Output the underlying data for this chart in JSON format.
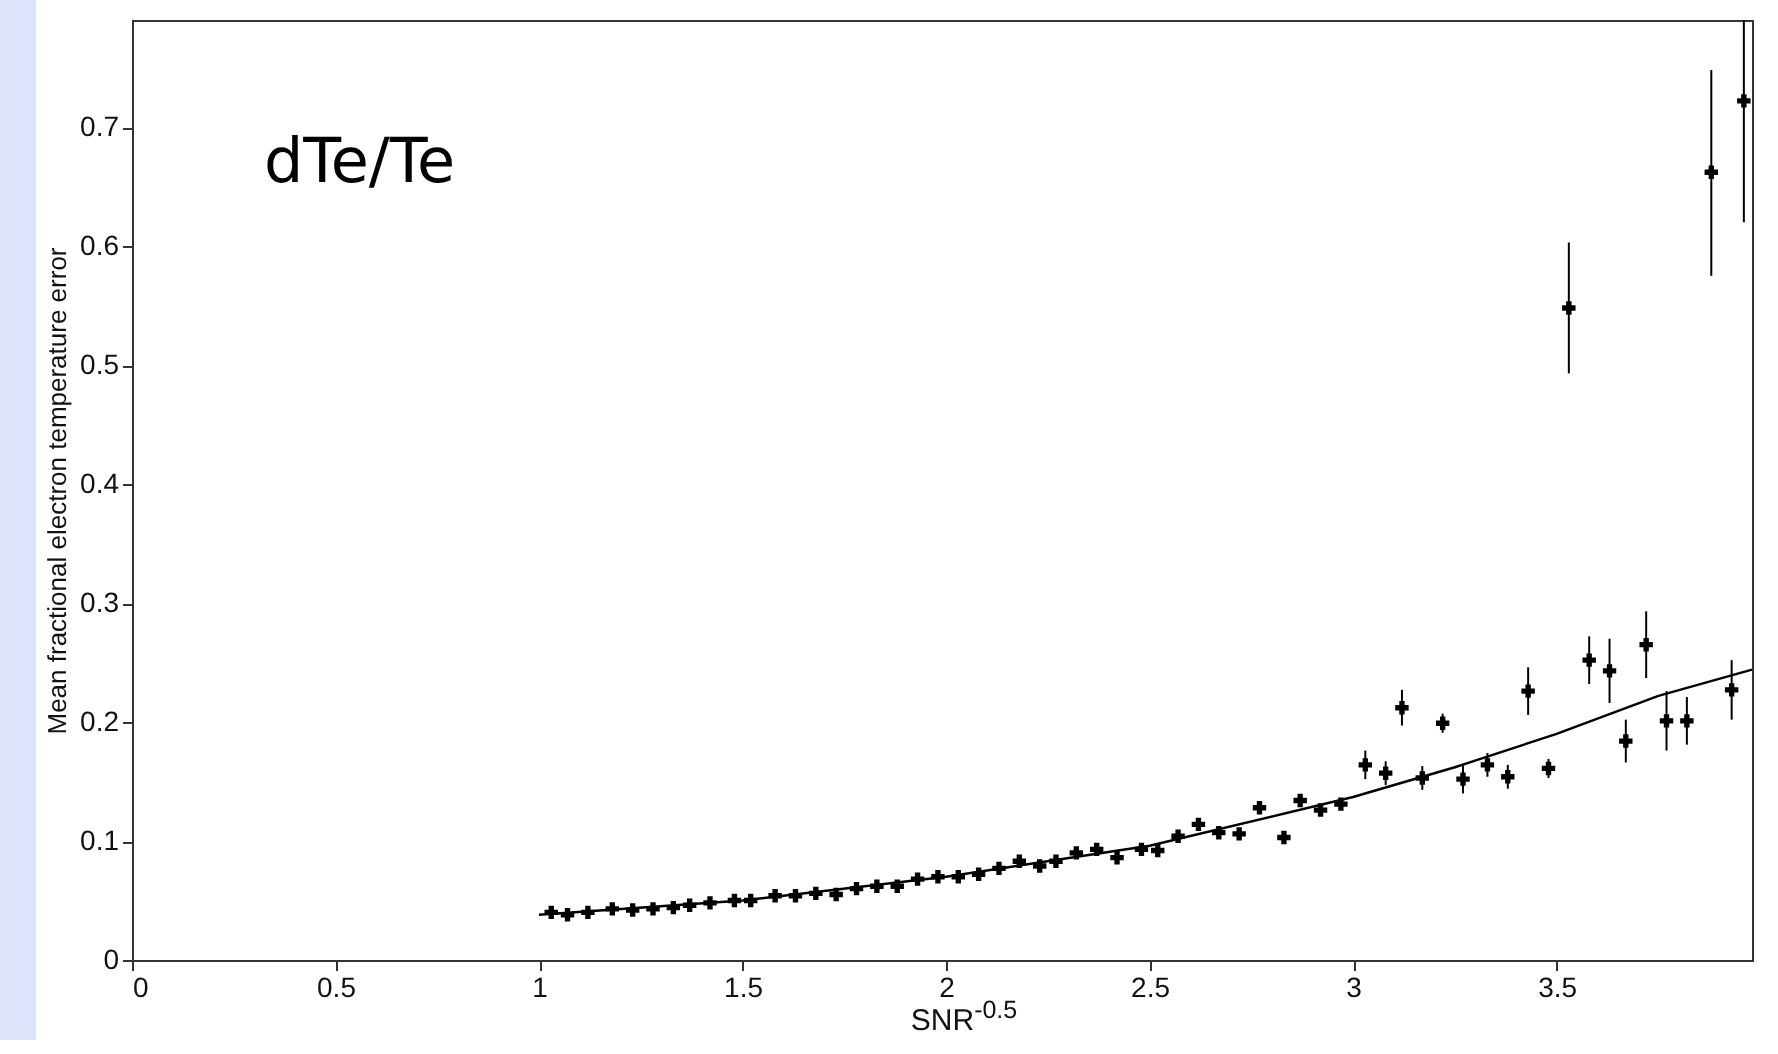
{
  "chart_data": {
    "type": "scatter",
    "xlabel": "SNR$^{-0.5}$",
    "ylabel": "Mean fractional electron temperature error",
    "annotations": [
      "dTe/Te"
    ],
    "xlim": [
      0,
      3.98
    ],
    "ylim": [
      0,
      0.79
    ],
    "xticks": [
      0,
      0.5,
      1,
      1.5,
      2,
      2.5,
      3,
      3.5
    ],
    "yticks": [
      0,
      0.1,
      0.2,
      0.3,
      0.4,
      0.5,
      0.6,
      0.7
    ],
    "grid": false,
    "marker": "cross",
    "series": [
      {
        "color": "#000000",
        "x": [
          1.03,
          1.07,
          1.12,
          1.18,
          1.23,
          1.28,
          1.33,
          1.37,
          1.42,
          1.48,
          1.52,
          1.58,
          1.63,
          1.68,
          1.73,
          1.78,
          1.83,
          1.88,
          1.93,
          1.98,
          2.03,
          2.08,
          2.13,
          2.18,
          2.23,
          2.27,
          2.32,
          2.37,
          2.42,
          2.48,
          2.52,
          2.57,
          2.62,
          2.67,
          2.72,
          2.77,
          2.83,
          2.87,
          2.92,
          2.97,
          3.03,
          3.08,
          3.12,
          3.17,
          3.22,
          3.27,
          3.33,
          3.38,
          3.43,
          3.48,
          3.53,
          3.58,
          3.63,
          3.67,
          3.72,
          3.77,
          3.82,
          3.88,
          3.93,
          3.96
        ],
        "values": [
          0.04,
          0.038,
          0.04,
          0.043,
          0.042,
          0.043,
          0.044,
          0.046,
          0.048,
          0.05,
          0.05,
          0.054,
          0.054,
          0.056,
          0.055,
          0.06,
          0.062,
          0.062,
          0.068,
          0.07,
          0.07,
          0.072,
          0.077,
          0.083,
          0.079,
          0.083,
          0.09,
          0.093,
          0.086,
          0.093,
          0.092,
          0.104,
          0.114,
          0.107,
          0.106,
          0.128,
          0.103,
          0.134,
          0.126,
          0.131,
          0.164,
          0.157,
          0.212,
          0.153,
          0.199,
          0.152,
          0.164,
          0.154,
          0.226,
          0.161,
          0.548,
          0.252,
          0.243,
          0.184,
          0.265,
          0.201,
          0.201,
          0.662,
          0.227,
          0.722
        ],
        "errors": [
          null,
          null,
          null,
          null,
          null,
          null,
          null,
          null,
          null,
          null,
          null,
          null,
          null,
          null,
          null,
          null,
          null,
          null,
          null,
          null,
          null,
          null,
          null,
          null,
          null,
          null,
          null,
          null,
          null,
          null,
          null,
          null,
          null,
          null,
          null,
          null,
          null,
          null,
          null,
          null,
          0.012,
          0.01,
          0.015,
          0.01,
          0.008,
          0.012,
          0.01,
          0.01,
          0.02,
          0.008,
          0.055,
          0.02,
          0.027,
          0.018,
          0.028,
          0.025,
          0.02,
          [
            0.575,
            0.748
          ],
          0.025,
          [
            0.62,
            0.79
          ]
        ]
      },
      {
        "type": "line",
        "color": "#000000",
        "marker": "none",
        "x": [
          1.0,
          1.5,
          2.0,
          2.5,
          3.0,
          3.25,
          3.5,
          3.75,
          3.98
        ],
        "values": [
          0.038,
          0.05,
          0.07,
          0.096,
          0.137,
          0.162,
          0.19,
          0.222,
          0.244
        ]
      }
    ]
  }
}
